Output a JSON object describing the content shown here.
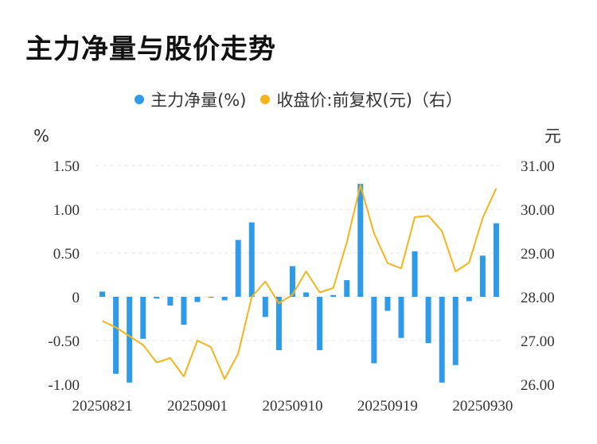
{
  "title": "主力净量与股价走势",
  "legend": {
    "series1": "主力净量(%)",
    "series2": "收盘价:前复权(元)（右）"
  },
  "colors": {
    "bar": "#2f9be8",
    "line": "#f3b51b",
    "grid": "#e6e6e6"
  },
  "chart_data": {
    "type": "bar+line",
    "left_axis": {
      "unit": "%",
      "ticks": [
        "1.50",
        "1.00",
        "0.50",
        "0",
        "-0.50",
        "-1.00"
      ],
      "ylim": [
        -1.0,
        1.5
      ]
    },
    "right_axis": {
      "unit": "元",
      "ticks": [
        "31.00",
        "30.00",
        "29.00",
        "28.00",
        "27.00",
        "26.00"
      ],
      "ylim": [
        26.0,
        31.0
      ]
    },
    "x_tick_labels": [
      "20250821",
      "20250901",
      "20250910",
      "20250919",
      "20250930"
    ],
    "x_tick_index": [
      0,
      7,
      14,
      21,
      28
    ],
    "grid": true,
    "series": [
      {
        "name": "主力净量(%)",
        "type": "bar",
        "values": [
          0.06,
          -0.88,
          -0.98,
          -0.48,
          -0.02,
          -0.1,
          -0.32,
          -0.06,
          -0.01,
          -0.04,
          0.65,
          0.85,
          -0.23,
          -0.61,
          0.35,
          0.05,
          -0.61,
          0.02,
          0.19,
          1.29,
          -0.76,
          -0.16,
          -0.47,
          0.52,
          -0.53,
          -0.98,
          -0.78,
          -0.05,
          0.47,
          0.84
        ]
      },
      {
        "name": "收盘价:前复权(元)（右）",
        "type": "line",
        "values": [
          27.45,
          27.3,
          27.1,
          26.9,
          26.5,
          26.6,
          26.18,
          27.0,
          26.85,
          26.12,
          26.7,
          28.0,
          28.35,
          27.85,
          28.05,
          28.58,
          28.1,
          28.2,
          29.25,
          30.55,
          29.45,
          28.77,
          28.65,
          29.82,
          29.85,
          29.5,
          28.58,
          28.78,
          29.8,
          30.48
        ]
      }
    ]
  }
}
